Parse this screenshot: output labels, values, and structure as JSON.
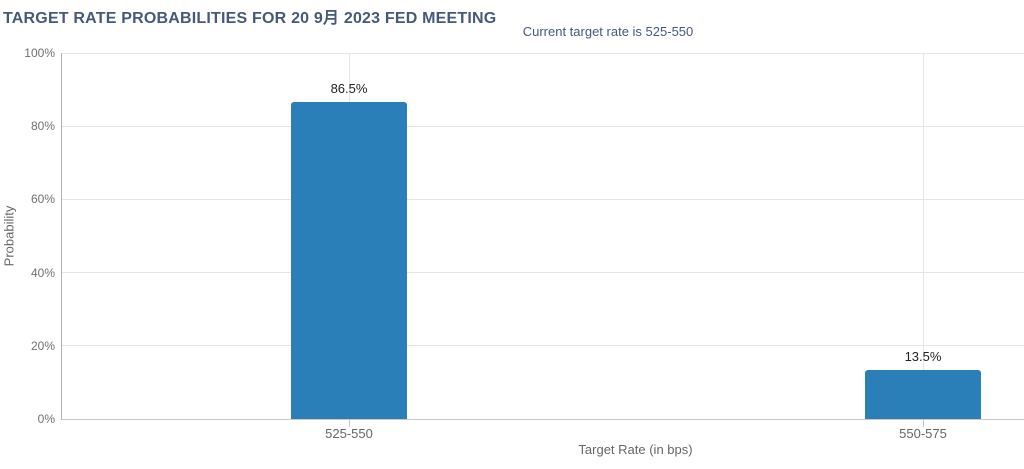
{
  "page": {
    "background": "#ffffff"
  },
  "chart_data": {
    "type": "bar",
    "title": "TARGET RATE PROBABILITIES FOR 20 9月 2023 FED MEETING",
    "subtitle": "Current target rate is 525-550",
    "categories": [
      "525-550",
      "550-575"
    ],
    "values": [
      86.5,
      13.5
    ],
    "value_labels": [
      "86.5%",
      "13.5%"
    ],
    "xlabel": "Target Rate (in bps)",
    "ylabel": "Probability",
    "ylim": [
      0,
      100
    ],
    "ytick_labels": [
      "0%",
      "20%",
      "40%",
      "60%",
      "80%",
      "100%"
    ],
    "grid": true,
    "legend": "none"
  },
  "colors": {
    "title": "#44597c",
    "subtitle": "#43597e",
    "bar": "#2b7fb9",
    "gridline": "#e4e4e4",
    "axis_line": "#b6aea8",
    "y_tick_label": "#707070",
    "x_tick_label": "#666666",
    "axis_title": "#666666",
    "value_label": "#222222"
  }
}
